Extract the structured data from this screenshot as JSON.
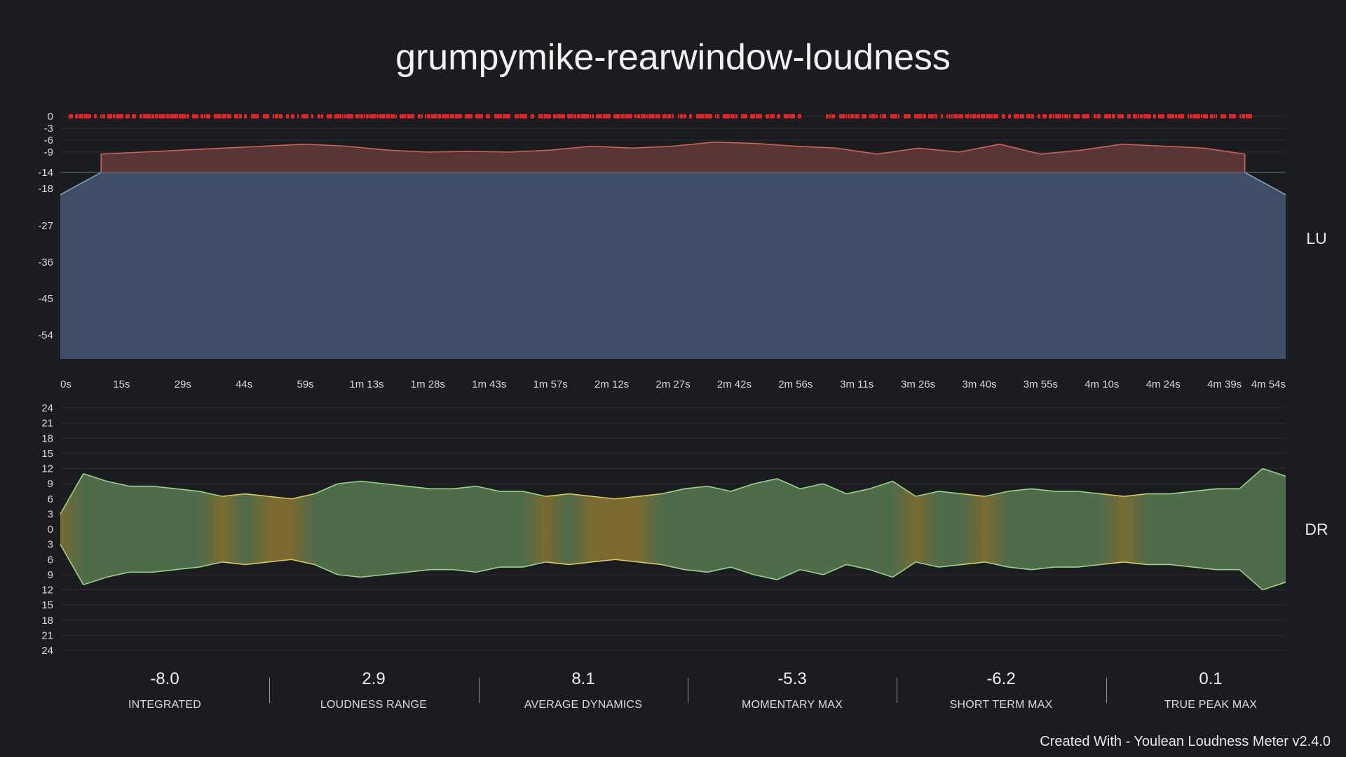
{
  "header": {
    "title": "grumpymike-rearwindow-loudness"
  },
  "chart_data": [
    {
      "type": "area",
      "name": "loudness",
      "side_label": "LU",
      "y_ticks": [
        0,
        -3,
        -6,
        -9,
        -14,
        -18,
        -27,
        -36,
        -45,
        -54
      ],
      "highlight_tick": -14,
      "ylim": [
        -60,
        0
      ],
      "x_ticks": [
        "0s",
        "15s",
        "29s",
        "44s",
        "59s",
        "1m 13s",
        "1m 28s",
        "1m 43s",
        "1m 57s",
        "2m 12s",
        "2m 27s",
        "2m 42s",
        "2m 56s",
        "3m 11s",
        "3m 26s",
        "3m 40s",
        "3m 55s",
        "4m 10s",
        "4m 24s",
        "4m 39s",
        "4m 54s"
      ],
      "x_seconds": [
        0,
        60,
        120,
        180,
        240,
        294
      ],
      "short_term_loudness": [
        -19.5,
        -9.5,
        -9.0,
        -8.5,
        -8.0,
        -7.5,
        -7.0,
        -7.5,
        -8.5,
        -9.0,
        -8.8,
        -9.0,
        -8.5,
        -7.5,
        -8.0,
        -7.5,
        -6.5,
        -6.8,
        -7.5,
        -8.0,
        -9.5,
        -8.0,
        -9.0,
        -7.0,
        -9.5,
        -8.5,
        -7.0,
        -7.5,
        -8.0,
        -9.5,
        -19.5
      ],
      "true_peak_clip_level": 0,
      "colors": {
        "loudness_fill": "#5a3535",
        "loudness_line": "#c96558",
        "below_target_fill": "#3f4e66",
        "below_target_line": "#8aa4c8",
        "clip": "#e3242b",
        "highlight_tick": "#e0b040"
      }
    },
    {
      "type": "area",
      "name": "dynamics",
      "side_label": "DR",
      "y_ticks": [
        "24",
        "21",
        "18",
        "15",
        "12",
        "9",
        "6",
        "3",
        "0",
        "3",
        "6",
        "9",
        "12",
        "15",
        "18",
        "21",
        "24"
      ],
      "ylim": [
        -24,
        24
      ],
      "dynamics": [
        3,
        11,
        9.5,
        8.5,
        8.5,
        8,
        7.5,
        6.5,
        7,
        6.5,
        6,
        7,
        9,
        9.5,
        9,
        8.5,
        8,
        8,
        8.5,
        7.5,
        7.5,
        6.5,
        7,
        6.5,
        6,
        6.5,
        7,
        8,
        8.5,
        7.5,
        9,
        10,
        8,
        9,
        7,
        8,
        9.5,
        6.5,
        7.5,
        7,
        6.5,
        7.5,
        8,
        7.5,
        7.5,
        7,
        6.5,
        7,
        7,
        7.5,
        8,
        8,
        12,
        10.5
      ],
      "colors": {
        "fill_green": "#4e6b4a",
        "fill_yellow": "#7a6a30",
        "line_green": "#9ad08a",
        "line_yellow": "#d8c860"
      }
    }
  ],
  "stats": [
    {
      "value": "-8.0",
      "label": "INTEGRATED"
    },
    {
      "value": "2.9",
      "label": "LOUDNESS RANGE"
    },
    {
      "value": "8.1",
      "label": "AVERAGE DYNAMICS"
    },
    {
      "value": "-5.3",
      "label": "MOMENTARY MAX"
    },
    {
      "value": "-6.2",
      "label": "SHORT TERM MAX"
    },
    {
      "value": "0.1",
      "label": "TRUE PEAK MAX"
    }
  ],
  "footer": {
    "credit": "Created With - Youlean Loudness Meter v2.4.0"
  }
}
